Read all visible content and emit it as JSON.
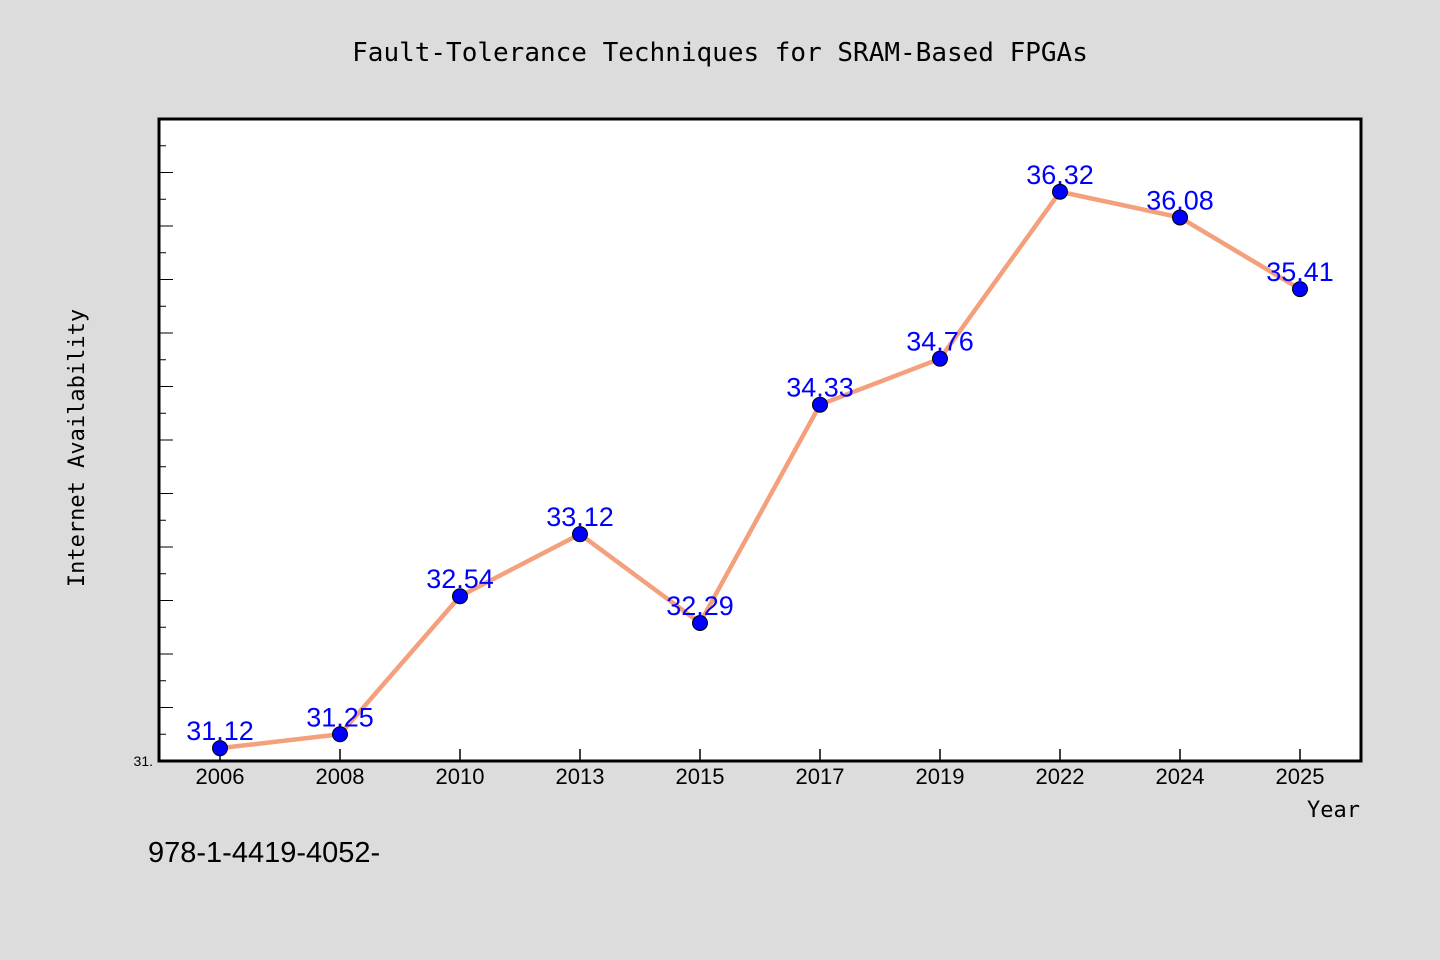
{
  "chart_data": {
    "type": "line",
    "title": "Fault-Tolerance Techniques for SRAM-Based FPGAs",
    "xlabel": "Year",
    "ylabel": "Internet Availability",
    "categories": [
      "2006",
      "2008",
      "2010",
      "2013",
      "2015",
      "2017",
      "2019",
      "2022",
      "2024",
      "2025"
    ],
    "values": [
      31.12,
      31.25,
      32.54,
      33.12,
      32.29,
      34.33,
      34.76,
      36.32,
      36.08,
      35.41
    ],
    "data_labels": [
      "31.12",
      "31.25",
      "32.54",
      "33.12",
      "32.29",
      "34.33",
      "34.76",
      "36.32",
      "36.08",
      "35.41"
    ],
    "ylim": [
      31.0,
      37.0
    ],
    "ytick_labels": [
      "31."
    ],
    "grid": false,
    "line_color": "#f4a07c",
    "marker_color": "#0000ff",
    "label_color": "#0000ff"
  },
  "footer": {
    "text": "978-1-4419-4052-"
  }
}
